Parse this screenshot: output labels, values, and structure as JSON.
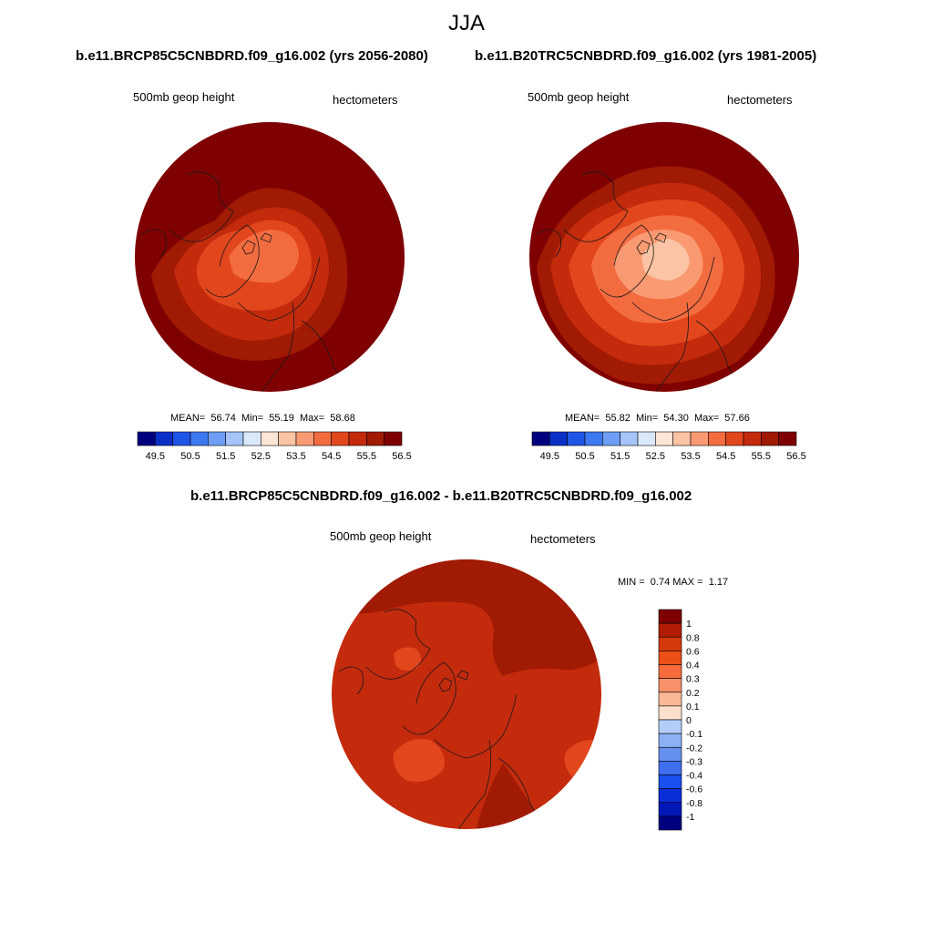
{
  "figure": {
    "title": "JJA",
    "left_panel_title": "b.e11.BRCP85C5CNBDRD.f09_g16.002 (yrs 2056-2080)",
    "right_panel_title": "b.e11.B20TRC5CNBDRD.f09_g16.002 (yrs 1981-2005)",
    "diff_panel_title": "b.e11.BRCP85C5CNBDRD.f09_g16.002 - b.e11.B20TRC5CNBDRD.f09_g16.002"
  },
  "panels": [
    {
      "id": "left",
      "variable": "500mb geop height",
      "units": "hectometers",
      "stats": {
        "mean_label": "MEAN=",
        "mean": "56.74",
        "min_label": "Min=",
        "min": "55.19",
        "max_label": "Max=",
        "max": "58.68"
      }
    },
    {
      "id": "right",
      "variable": "500mb geop height",
      "units": "hectometers",
      "stats": {
        "mean_label": "MEAN=",
        "mean": "55.82",
        "min_label": "Min=",
        "min": "54.30",
        "max_label": "Max=",
        "max": "57.66"
      }
    },
    {
      "id": "diff",
      "variable": "500mb geop height",
      "units": "hectometers",
      "stats": {
        "min_label": "MIN =",
        "min": "0.74",
        "max_label": "MAX =",
        "max": "1.17"
      }
    }
  ],
  "colorbar_abs": {
    "colors": [
      "#00007f",
      "#0a30c8",
      "#1f55e6",
      "#3c78f0",
      "#6e9ef5",
      "#a5c4f8",
      "#d9e9fb",
      "#fde6d6",
      "#fbc4a4",
      "#f99a72",
      "#f36c40",
      "#e2461c",
      "#c42a0c",
      "#a01a04",
      "#7f0000"
    ],
    "tick_labels": [
      "49.5",
      "50.5",
      "51.5",
      "52.5",
      "53.5",
      "54.5",
      "55.5",
      "56.5"
    ]
  },
  "colorbar_diff": {
    "colors": [
      "#7f0000",
      "#b01c04",
      "#d43a0c",
      "#ec5018",
      "#f66b3c",
      "#f9906a",
      "#fbb899",
      "#fde0cc",
      "#dce9fb",
      "#b4cdf8",
      "#8cb0f4",
      "#6690f0",
      "#3f6ff0",
      "#1a4ff0",
      "#0a2fd8",
      "#0018b8",
      "#00007f"
    ],
    "tick_labels": [
      "1",
      "0.8",
      "0.6",
      "0.4",
      "0.3",
      "0.2",
      "0.1",
      "0",
      "-0.1",
      "-0.2",
      "-0.3",
      "-0.4",
      "-0.6",
      "-0.8",
      "-1"
    ]
  },
  "map_colors": {
    "abs_outer": "#7f0000",
    "abs_mid": "#a01a04",
    "abs_mid2": "#c42a0c",
    "abs_inner": "#e2461c",
    "abs_core": "#f36c40",
    "abs_peak": "#f99a72",
    "abs_center": "#fbc4a4",
    "diff_base": "#c42a0c",
    "diff_high": "#a01a04",
    "diff_low": "#e2461c"
  }
}
